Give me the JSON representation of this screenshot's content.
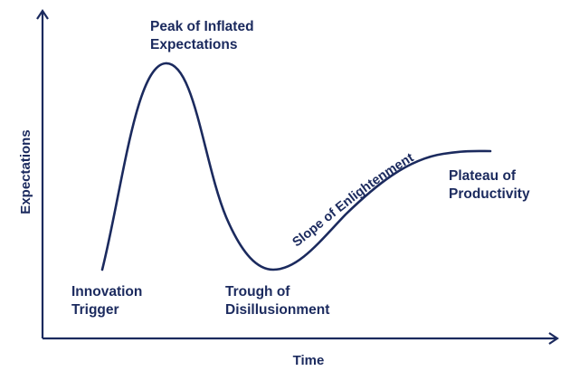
{
  "colors": {
    "ink": "#1b2a5e",
    "background": "#ffffff"
  },
  "axes": {
    "x_label": "Time",
    "y_label": "Expectations"
  },
  "phases": {
    "innovation_trigger": [
      "Innovation",
      "Trigger"
    ],
    "peak": [
      "Peak of Inflated",
      "Expectations"
    ],
    "trough": [
      "Trough of",
      "Disillusionment"
    ],
    "slope": "Slope of Enlightenment",
    "plateau": [
      "Plateau of",
      "Productivity"
    ]
  }
}
